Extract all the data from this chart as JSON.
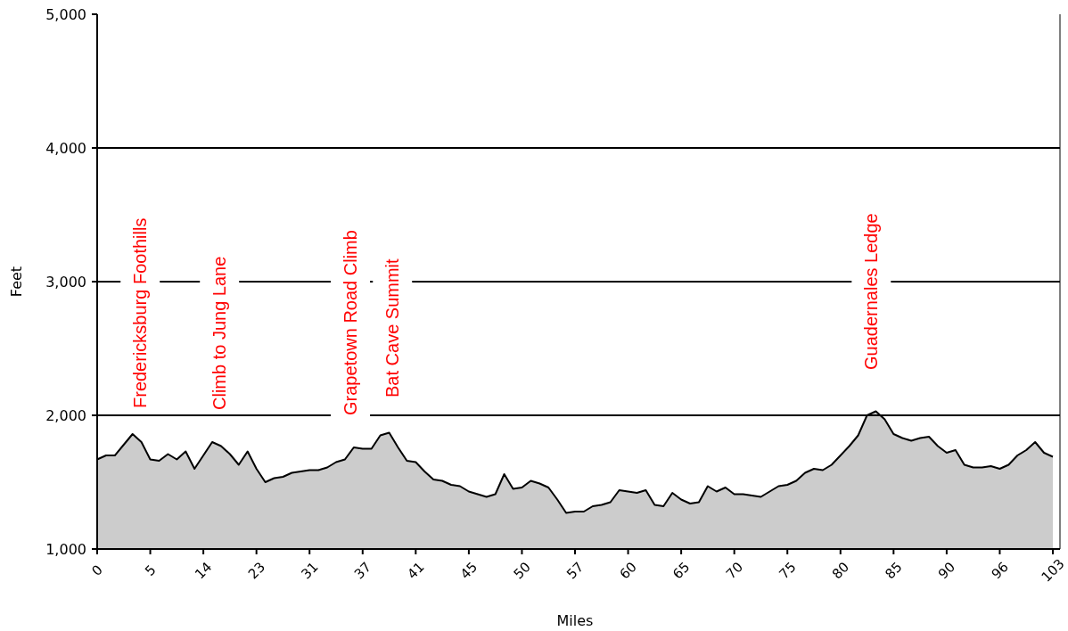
{
  "chart_data": {
    "type": "area",
    "xlabel": "Miles",
    "ylabel": "Feet",
    "categories": [
      "0",
      null,
      null,
      null,
      null,
      null,
      "5",
      null,
      null,
      null,
      null,
      null,
      "14",
      null,
      null,
      null,
      null,
      null,
      "23",
      null,
      null,
      null,
      null,
      null,
      "31",
      null,
      null,
      null,
      null,
      null,
      "37",
      null,
      null,
      null,
      null,
      null,
      "41",
      null,
      null,
      null,
      null,
      null,
      "45",
      null,
      null,
      null,
      null,
      null,
      "50",
      null,
      null,
      null,
      null,
      null,
      "57",
      null,
      null,
      null,
      null,
      null,
      "60",
      null,
      null,
      null,
      null,
      null,
      "65",
      null,
      null,
      null,
      null,
      null,
      "70",
      null,
      null,
      null,
      null,
      null,
      "75",
      null,
      null,
      null,
      null,
      null,
      "80",
      null,
      null,
      null,
      null,
      null,
      "85",
      null,
      null,
      null,
      null,
      null,
      "90",
      null,
      null,
      null,
      null,
      null,
      "96",
      null,
      null,
      null,
      null,
      null,
      "103"
    ],
    "series": [
      {
        "color": "#cccccc",
        "values": [
          1670,
          1700,
          1700,
          1780,
          1860,
          1800,
          1670,
          1660,
          1710,
          1670,
          1730,
          1600,
          1700,
          1800,
          1770,
          1710,
          1630,
          1730,
          1600,
          1500,
          1530,
          1540,
          1570,
          1580,
          1590,
          1590,
          1610,
          1650,
          1670,
          1760,
          1750,
          1750,
          1850,
          1870,
          1760,
          1660,
          1650,
          1580,
          1520,
          1510,
          1480,
          1470,
          1430,
          1410,
          1390,
          1410,
          1560,
          1450,
          1460,
          1510,
          1490,
          1460,
          1370,
          1270,
          1280,
          1280,
          1320,
          1330,
          1350,
          1440,
          1430,
          1420,
          1440,
          1330,
          1320,
          1420,
          1370,
          1340,
          1350,
          1470,
          1430,
          1460,
          1410,
          1410,
          1400,
          1390,
          1430,
          1470,
          1480,
          1510,
          1570,
          1600,
          1590,
          1630,
          1700,
          1770,
          1850,
          2000,
          2030,
          1970,
          1860,
          1830,
          1810,
          1830,
          1840,
          1770,
          1720,
          1740,
          1630,
          1610,
          1610,
          1620,
          1600,
          1630,
          1700,
          1740,
          1800,
          1720,
          1690
        ]
      }
    ],
    "ylim": [
      1000,
      5000
    ],
    "yticks": [
      {
        "value": 1000,
        "label": "1,000"
      },
      {
        "value": 2000,
        "label": "2,000"
      },
      {
        "value": 3000,
        "label": "3,000"
      },
      {
        "value": 4000,
        "label": "4,000"
      },
      {
        "value": 5000,
        "label": "5,000"
      }
    ],
    "grid": "y",
    "annotations": [
      "Fredericksburg Foothills",
      "Climb to Jung Lane",
      "Grapetown Road Climb",
      "Bat Cave Summit",
      "Guadernales Ledge"
    ]
  }
}
